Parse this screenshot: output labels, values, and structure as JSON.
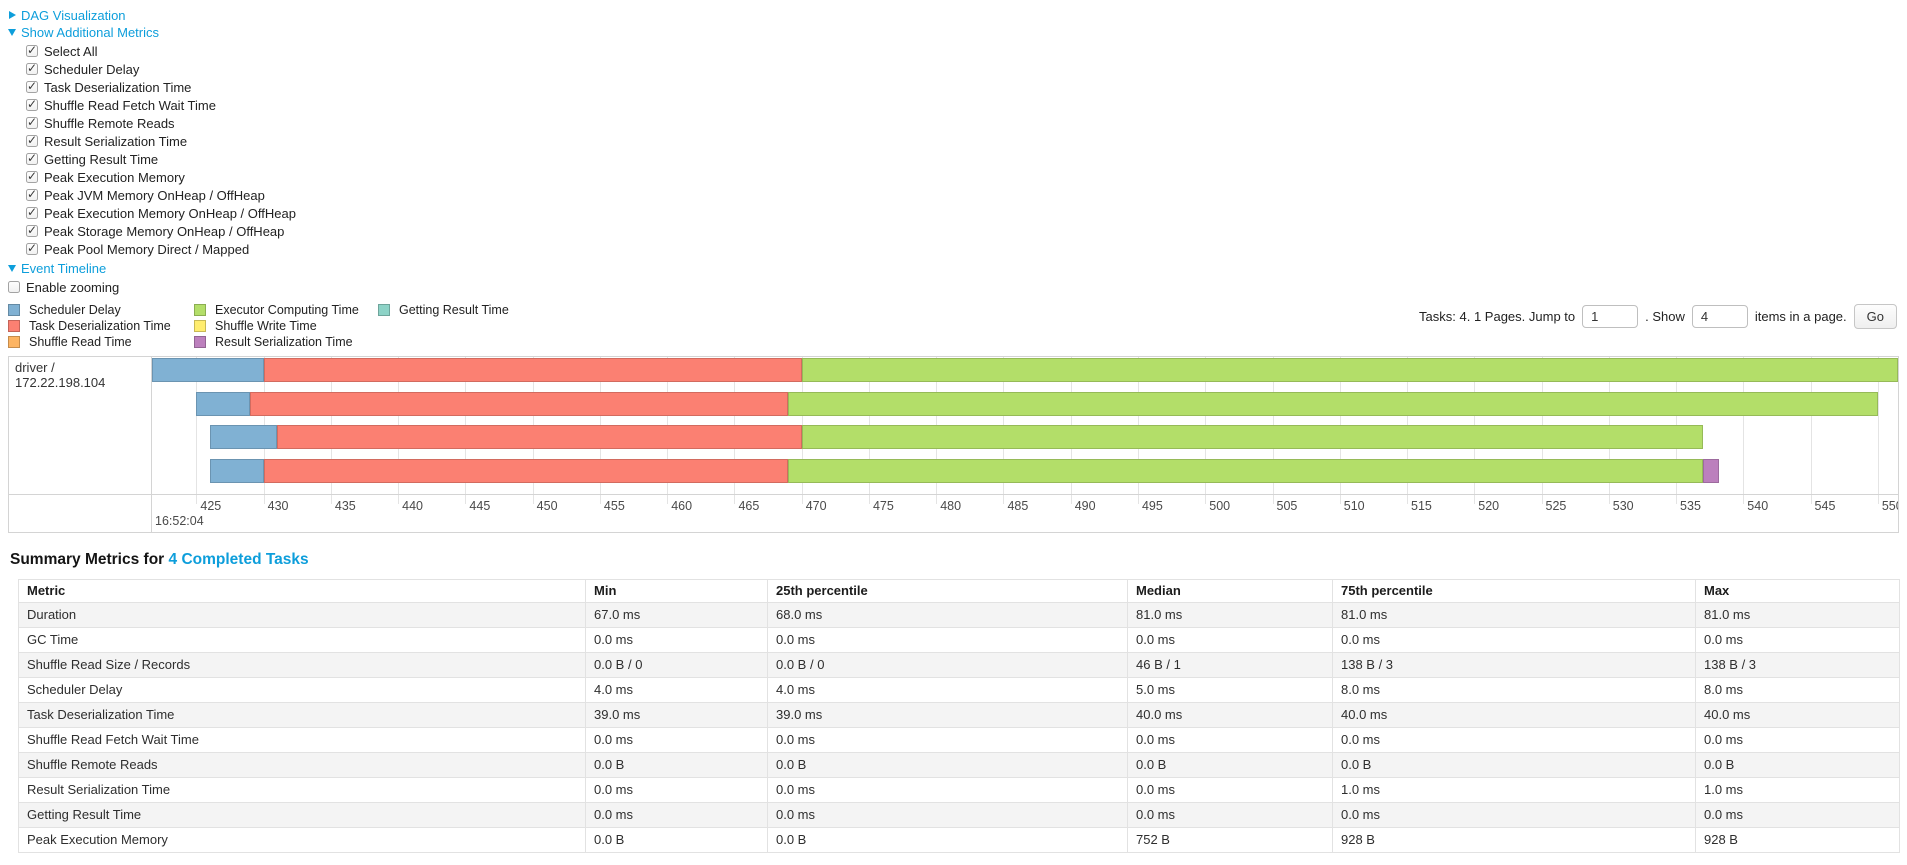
{
  "colors": {
    "link": "#0d9edb",
    "scheduler_delay": "#80B1D3",
    "deserialization": "#FB8072",
    "shuffle_read": "#FDB462",
    "executor_computing": "#B3DE69",
    "shuffle_write": "#FFED6F",
    "result_serialization": "#BC80BD",
    "getting_result": "#8DD3C7"
  },
  "controls": {
    "dag": {
      "label": "DAG Visualization"
    },
    "metrics": {
      "label": "Show Additional Metrics",
      "checkboxes": [
        "Select All",
        "Scheduler Delay",
        "Task Deserialization Time",
        "Shuffle Read Fetch Wait Time",
        "Shuffle Remote Reads",
        "Result Serialization Time",
        "Getting Result Time",
        "Peak Execution Memory",
        "Peak JVM Memory OnHeap / OffHeap",
        "Peak Execution Memory OnHeap / OffHeap",
        "Peak Storage Memory OnHeap / OffHeap",
        "Peak Pool Memory Direct / Mapped"
      ]
    },
    "event_timeline": {
      "label": "Event Timeline",
      "enable_zooming_label": "Enable zooming"
    }
  },
  "pagination": {
    "prefix": "Tasks: 4. 1 Pages. Jump to",
    "jump_value": "1",
    "middle": ". Show",
    "show_value": "4",
    "suffix": "items in a page.",
    "go_label": "Go"
  },
  "timeline": {
    "group_label": "driver / 172.22.198.104",
    "domain": [
      421.7,
      551.5
    ],
    "ticks": [
      425,
      430,
      435,
      440,
      445,
      450,
      455,
      460,
      465,
      470,
      475,
      480,
      485,
      490,
      495,
      500,
      505,
      510,
      515,
      520,
      525,
      530,
      535,
      540,
      545,
      550
    ],
    "major_tick_label": "16:52:04",
    "legend_columns": [
      [
        {
          "key": "scheduler_delay",
          "label": "Scheduler Delay"
        },
        {
          "key": "deserialization",
          "label": "Task Deserialization Time"
        },
        {
          "key": "shuffle_read",
          "label": "Shuffle Read Time"
        }
      ],
      [
        {
          "key": "executor_computing",
          "label": "Executor Computing Time"
        },
        {
          "key": "shuffle_write",
          "label": "Shuffle Write Time"
        },
        {
          "key": "result_serialization",
          "label": "Result Serialization Time"
        }
      ],
      [
        {
          "key": "getting_result",
          "label": "Getting Result Time"
        }
      ]
    ],
    "tasks": [
      {
        "segments": [
          {
            "type": "scheduler_delay",
            "start": 421.7,
            "end": 430
          },
          {
            "type": "deserialization",
            "start": 430,
            "end": 470
          },
          {
            "type": "executor_computing",
            "start": 470,
            "end": 551.5
          }
        ]
      },
      {
        "segments": [
          {
            "type": "scheduler_delay",
            "start": 425,
            "end": 429
          },
          {
            "type": "deserialization",
            "start": 429,
            "end": 469
          },
          {
            "type": "executor_computing",
            "start": 469,
            "end": 550
          }
        ]
      },
      {
        "segments": [
          {
            "type": "scheduler_delay",
            "start": 426,
            "end": 431
          },
          {
            "type": "deserialization",
            "start": 431,
            "end": 470
          },
          {
            "type": "executor_computing",
            "start": 470,
            "end": 537
          }
        ]
      },
      {
        "segments": [
          {
            "type": "scheduler_delay",
            "start": 426,
            "end": 430
          },
          {
            "type": "deserialization",
            "start": 430,
            "end": 469
          },
          {
            "type": "executor_computing",
            "start": 469,
            "end": 537
          },
          {
            "type": "result_serialization",
            "start": 537,
            "end": 538.2
          }
        ]
      }
    ]
  },
  "summary": {
    "title_prefix": "Summary Metrics for",
    "title_link": "4 Completed Tasks",
    "table": {
      "headers": [
        "Metric",
        "Min",
        "25th percentile",
        "Median",
        "75th percentile",
        "Max"
      ],
      "rows": [
        {
          "metric": "Duration",
          "values": [
            "67.0 ms",
            "68.0 ms",
            "81.0 ms",
            "81.0 ms",
            "81.0 ms"
          ]
        },
        {
          "metric": "GC Time",
          "values": [
            "0.0 ms",
            "0.0 ms",
            "0.0 ms",
            "0.0 ms",
            "0.0 ms"
          ]
        },
        {
          "metric": "Shuffle Read Size / Records",
          "values": [
            "0.0 B / 0",
            "0.0 B / 0",
            "46 B / 1",
            "138 B / 3",
            "138 B / 3"
          ]
        },
        {
          "metric": "Scheduler Delay",
          "values": [
            "4.0 ms",
            "4.0 ms",
            "5.0 ms",
            "8.0 ms",
            "8.0 ms"
          ]
        },
        {
          "metric": "Task Deserialization Time",
          "values": [
            "39.0 ms",
            "39.0 ms",
            "40.0 ms",
            "40.0 ms",
            "40.0 ms"
          ]
        },
        {
          "metric": "Shuffle Read Fetch Wait Time",
          "values": [
            "0.0 ms",
            "0.0 ms",
            "0.0 ms",
            "0.0 ms",
            "0.0 ms"
          ]
        },
        {
          "metric": "Shuffle Remote Reads",
          "values": [
            "0.0 B",
            "0.0 B",
            "0.0 B",
            "0.0 B",
            "0.0 B"
          ]
        },
        {
          "metric": "Result Serialization Time",
          "values": [
            "0.0 ms",
            "0.0 ms",
            "0.0 ms",
            "1.0 ms",
            "1.0 ms"
          ]
        },
        {
          "metric": "Getting Result Time",
          "values": [
            "0.0 ms",
            "0.0 ms",
            "0.0 ms",
            "0.0 ms",
            "0.0 ms"
          ]
        },
        {
          "metric": "Peak Execution Memory",
          "values": [
            "0.0 B",
            "0.0 B",
            "752 B",
            "928 B",
            "928 B"
          ]
        }
      ]
    }
  }
}
